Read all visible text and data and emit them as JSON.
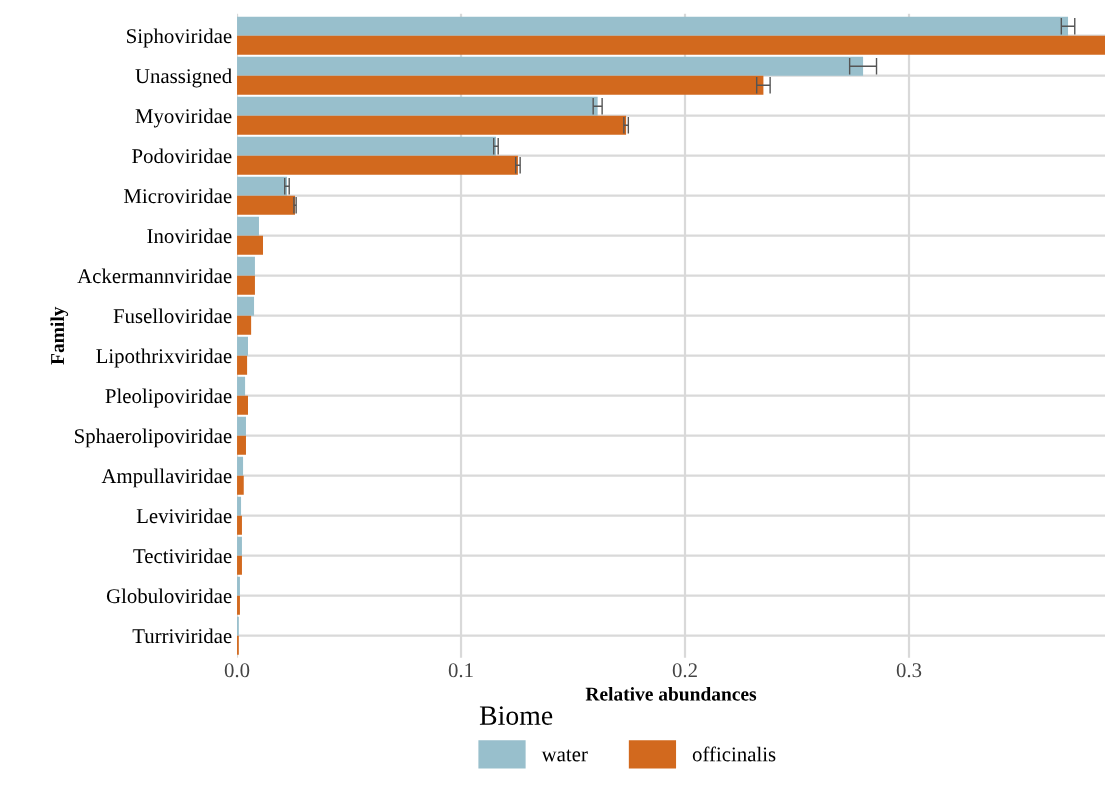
{
  "chart_data": {
    "type": "bar",
    "orientation": "horizontal",
    "xlabel": "Relative abundances",
    "ylabel": "Family",
    "legend_title": "Biome",
    "legend": "bottom",
    "grid": true,
    "categories": [
      "Siphoviridae",
      "Unassigned",
      "Myoviridae",
      "Podoviridae",
      "Microviridae",
      "Inoviridae",
      "Ackermannviridae",
      "Fuselloviridae",
      "Lipothrixviridae",
      "Pleolipoviridae",
      "Sphaerolipoviridae",
      "Ampullaviridae",
      "Leviviridae",
      "Tectiviridae",
      "Globuloviridae",
      "Turriviridae"
    ],
    "xlim": [
      0,
      0.3875
    ],
    "xticks": [
      {
        "value": 0,
        "label": "0.0"
      },
      0.1,
      0.2,
      0.3
    ],
    "series": [
      {
        "name": "water",
        "color": "#98bfcc",
        "values": [
          0.371,
          0.2795,
          0.161,
          0.1156,
          0.0223,
          0.0098,
          0.008,
          0.0076,
          0.0049,
          0.0036,
          0.004,
          0.0027,
          0.0018,
          0.0022,
          0.0013,
          0.0008
        ],
        "errors": [
          0.003,
          0.006,
          0.002,
          0.001,
          0.001,
          null,
          null,
          null,
          null,
          null,
          null,
          null,
          null,
          null,
          null,
          null
        ]
      },
      {
        "name": "officinalis",
        "color": "#d2691e",
        "values": [
          0.3875,
          0.235,
          0.1737,
          0.1254,
          0.0259,
          0.0116,
          0.008,
          0.0063,
          0.0045,
          0.0049,
          0.004,
          0.003,
          0.0022,
          0.0022,
          0.0013,
          0.0008
        ],
        "errors": [
          null,
          0.003,
          0.001,
          0.001,
          0.0005,
          null,
          null,
          null,
          null,
          null,
          null,
          null,
          null,
          null,
          null,
          null
        ]
      }
    ]
  }
}
